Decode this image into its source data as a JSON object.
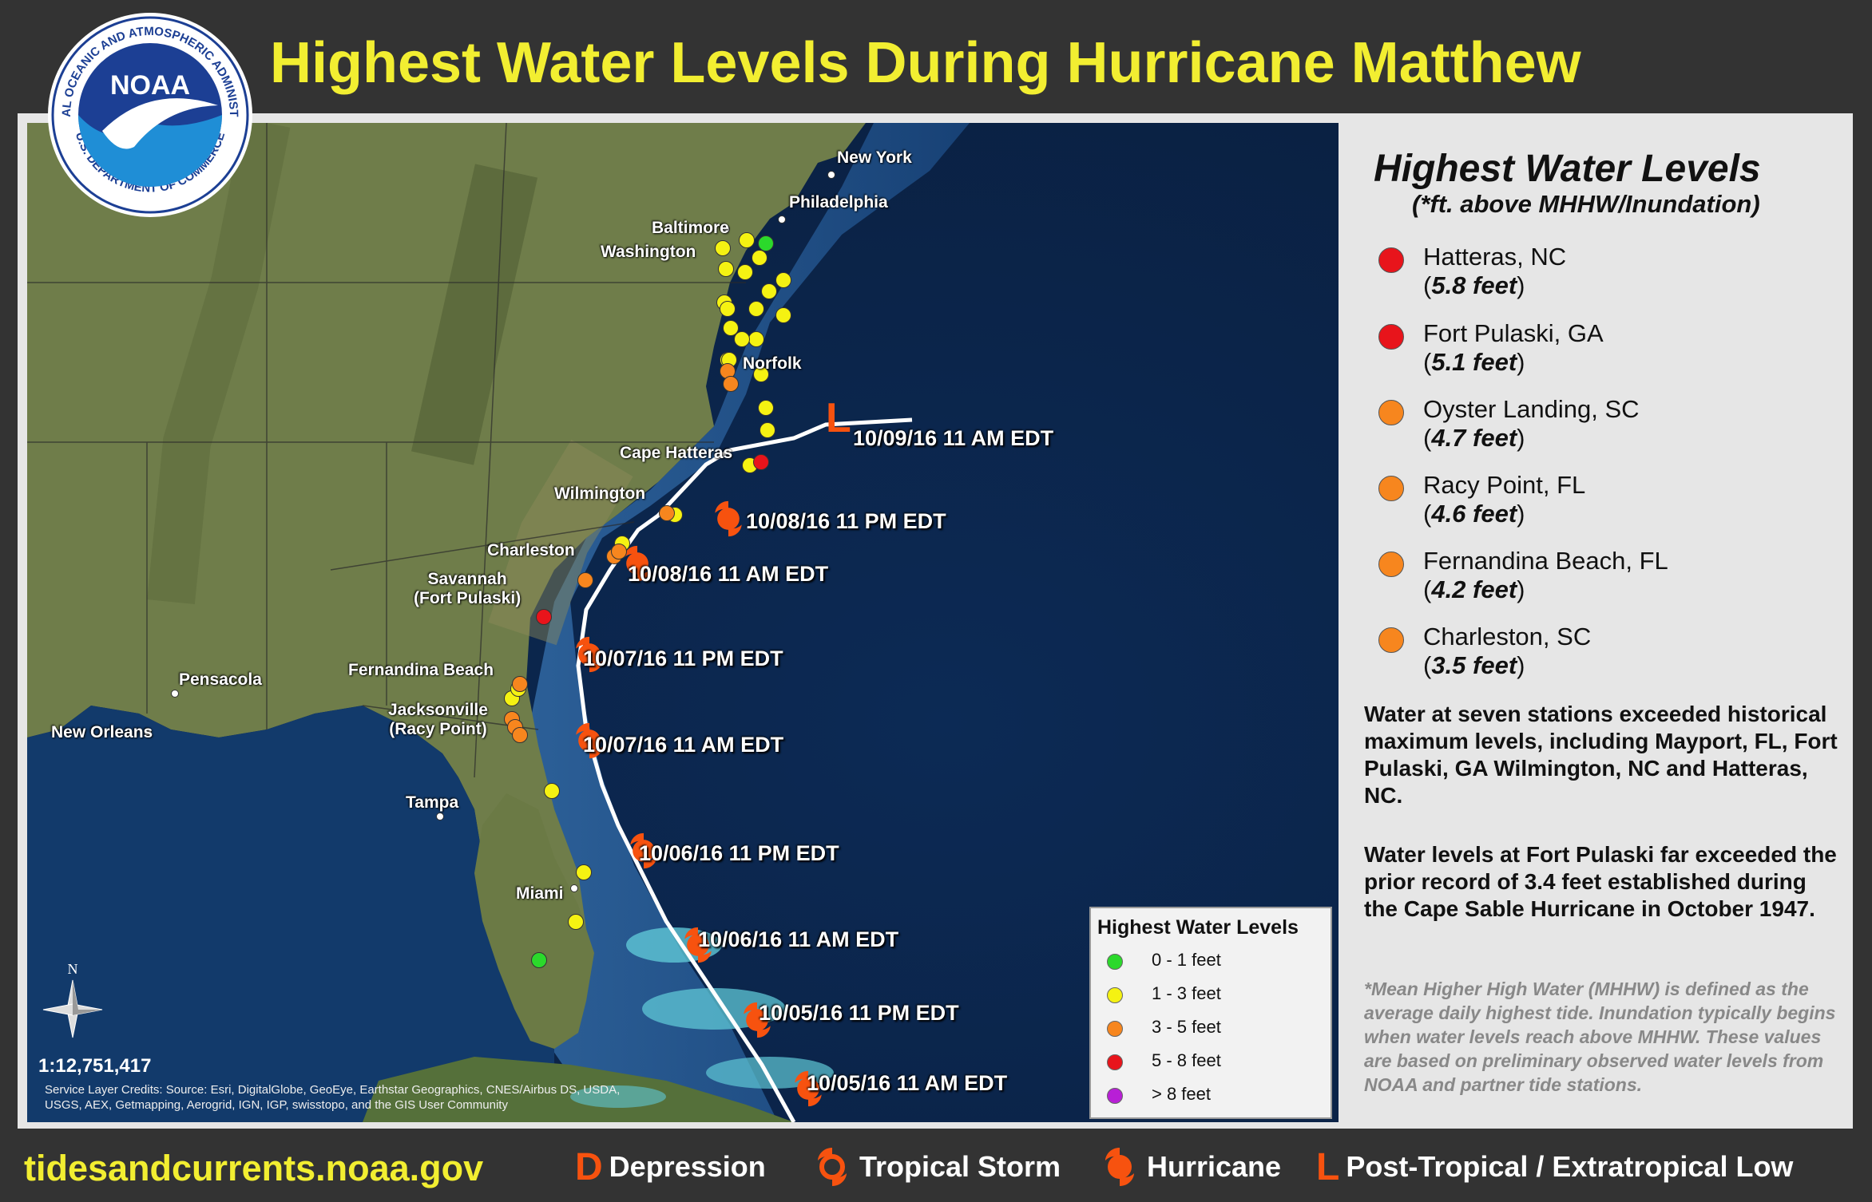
{
  "title": "Highest Water Levels During Hurricane Matthew",
  "logo": {
    "text": "NOAA",
    "ring_top": "NATIONAL OCEANIC AND ATMOSPHERIC ADMINISTRATION",
    "ring_bottom": "U.S. DEPARTMENT OF COMMERCE"
  },
  "sidebar": {
    "title": "Highest Water Levels",
    "subtitle": "(*ft. above MHHW/Inundation)",
    "stations": [
      {
        "name": "Hatteras, NC",
        "value": "5.8 feet",
        "color": "#e8141b",
        "paren": true
      },
      {
        "name": "Fort Pulaski, GA",
        "value": "5.1 feet",
        "color": "#e8141b",
        "paren": true
      },
      {
        "name": "Oyster Landing, SC",
        "value": "4.7 feet",
        "color": "#f7861e",
        "paren": false
      },
      {
        "name": "Racy Point, FL",
        "value": "4.6 feet",
        "color": "#f7861e",
        "paren": false
      },
      {
        "name": "Fernandina Beach, FL",
        "value": "4.2 feet",
        "color": "#f7861e",
        "paren": false
      },
      {
        "name": "Charleston, SC",
        "value": "3.5 feet",
        "color": "#f7861e",
        "paren": false
      }
    ],
    "paragraph1": "Water at seven stations exceeded historical maximum levels, including Mayport, FL, Fort Pulaski, GA Wilmington, NC and Hatteras, NC.",
    "paragraph2": "Water levels at Fort Pulaski far exceeded the prior record of 3.4 feet established during the Cape Sable Hurricane in October 1947.",
    "note": "*Mean Higher High Water (MHHW) is defined as the average daily highest tide. Inundation typically begins when water levels reach above MHHW. These values are based on preliminary observed water levels from NOAA and partner tide stations."
  },
  "map": {
    "cities": [
      "New York",
      "Philadelphia",
      "Baltimore",
      "Washington",
      "Norfolk",
      "Cape Hatteras",
      "Wilmington",
      "Charleston",
      "Savannah\n(Fort Pulaski)",
      "Fernandina Beach",
      "Jacksonville\n(Racy Point)",
      "Pensacola",
      "New Orleans",
      "Tampa",
      "Miami"
    ],
    "track_times": [
      "10/09/16 11 AM EDT",
      "10/08/16 11 PM EDT",
      "10/08/16 11 AM EDT",
      "10/07/16 11 PM EDT",
      "10/07/16 11 AM EDT",
      "10/06/16 11 PM EDT",
      "10/06/16 11 AM EDT",
      "10/05/16 11 PM EDT",
      "10/05/16 11 AM EDT"
    ],
    "scale": "1:12,751,417",
    "credits": "Service Layer Credits: Source: Esri, DigitalGlobe, GeoEye, Earthstar Geographics, CNES/Airbus DS, USDA, USGS, AEX, Getmapping, Aerogrid, IGN, IGP, swisstopo, and the GIS User Community",
    "compass_n": "N",
    "post_tropical_marker": "L",
    "legend": {
      "title": "Highest Water Levels",
      "items": [
        {
          "label": "0 - 1 feet",
          "color": "#2bd92b"
        },
        {
          "label": "1 - 3 feet",
          "color": "#f5f212"
        },
        {
          "label": "3 - 5 feet",
          "color": "#f7861e"
        },
        {
          "label": "5 - 8 feet",
          "color": "#e8141b"
        },
        {
          "label": "> 8 feet",
          "color": "#b81fd6"
        }
      ]
    }
  },
  "footer": {
    "url": "tidesandcurrents.noaa.gov",
    "legend": [
      {
        "symbol": "D",
        "label": "Depression"
      },
      {
        "symbol": "tropical-storm-icon",
        "label": "Tropical Storm"
      },
      {
        "symbol": "hurricane-icon",
        "label": "Hurricane"
      },
      {
        "symbol": "L",
        "label": "Post-Tropical / Extratropical Low"
      }
    ]
  },
  "colors": {
    "title": "#f2ee31",
    "track_marker": "#f7520f",
    "background": "#333333"
  }
}
